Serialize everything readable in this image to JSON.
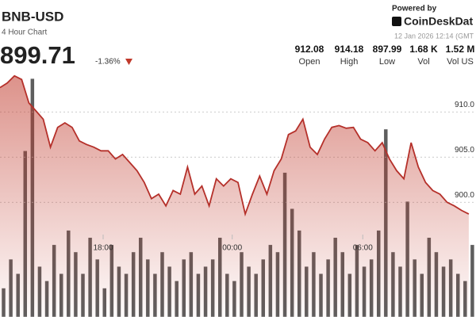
{
  "header": {
    "symbol": "BNB-USD",
    "subtitle": "4 Hour Chart",
    "price": "899.71",
    "change": "-1.36%",
    "stats": [
      {
        "value": "912.08",
        "label": "Open"
      },
      {
        "value": "914.18",
        "label": "High"
      },
      {
        "value": "897.99",
        "label": "Low"
      },
      {
        "value": "1.68 K",
        "label": "Vol"
      },
      {
        "value": "1.52 M",
        "label": "Vol US"
      }
    ],
    "powered": "Powered by",
    "brand": "CoinDeskDat",
    "timestamp": "12 Jan 2026 12:14 (GMT"
  },
  "chart_data": {
    "type": "line",
    "series": [
      {
        "color": "#b5302a",
        "values": [
          912.7,
          913.2,
          914.0,
          913.6,
          911.0,
          910.1,
          909.2,
          906.1,
          908.3,
          908.8,
          908.3,
          906.8,
          906.4,
          906.1,
          905.7,
          905.7,
          904.8,
          905.3,
          904.4,
          903.5,
          902.2,
          900.4,
          900.9,
          899.6,
          901.3,
          900.9,
          903.9,
          900.9,
          901.8,
          899.6,
          902.6,
          901.8,
          902.6,
          902.2,
          898.7,
          900.9,
          902.9,
          900.9,
          903.5,
          904.8,
          907.5,
          907.9,
          909.2,
          906.1,
          905.3,
          907.0,
          908.3,
          908.5,
          908.2,
          908.3,
          907.0,
          906.6,
          905.7,
          906.6,
          904.8,
          903.5,
          902.6,
          906.6,
          903.9,
          902.2,
          901.3,
          900.9,
          900.0,
          899.6,
          899.1,
          898.7
        ]
      },
      {
        "type": "bar",
        "axis": "y2",
        "color": "#5e5e5e",
        "values": [
          20,
          40,
          30,
          115,
          165,
          35,
          25,
          50,
          30,
          60,
          45,
          30,
          55,
          40,
          20,
          50,
          35,
          30,
          45,
          55,
          40,
          30,
          45,
          35,
          25,
          40,
          45,
          30,
          35,
          40,
          55,
          30,
          25,
          45,
          35,
          30,
          40,
          50,
          45,
          100,
          75,
          60,
          35,
          45,
          30,
          40,
          55,
          45,
          30,
          50,
          35,
          40,
          60,
          130,
          45,
          35,
          80,
          40,
          30,
          55,
          45,
          35,
          40,
          30,
          25,
          50
        ]
      }
    ],
    "xlim": [
      0,
      66
    ],
    "xticks": [
      {
        "value": 14.3,
        "label": "18:00"
      },
      {
        "value": 32.2,
        "label": "00:00"
      },
      {
        "value": 50.3,
        "label": "06:00"
      }
    ],
    "ylim": [
      887.3,
      914.5
    ],
    "yticks": [
      {
        "value": 900,
        "label": "900.0"
      },
      {
        "value": 905,
        "label": "905.0"
      },
      {
        "value": 910,
        "label": "910.0"
      }
    ],
    "y2lim": [
      0,
      170
    ],
    "grid": true
  }
}
